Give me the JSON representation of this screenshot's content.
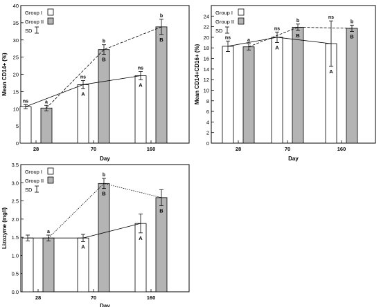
{
  "chart_data": [
    {
      "type": "bar",
      "panel": "top-left",
      "ylabel": "Mean CD14+ (%)",
      "xlabel": "Day",
      "categories": [
        "28",
        "70",
        "160"
      ],
      "ylim": [
        0,
        40
      ],
      "yticks": [
        0,
        5,
        10,
        15,
        20,
        25,
        30,
        35,
        40
      ],
      "grid": false,
      "legend_position": "top-left",
      "legend": {
        "series": [
          "Group I",
          "Group II"
        ],
        "sd_label": "SD"
      },
      "series": [
        {
          "name": "Group I",
          "values": [
            10.6,
            17.0,
            19.6
          ],
          "sd": [
            0.6,
            1.2,
            1.2
          ],
          "colors": {
            "fill": "#ffffff",
            "stroke": "#000000"
          },
          "labels_above": [
            "ns",
            "ns",
            "ns"
          ],
          "labels_inside": [
            "",
            "A",
            "A"
          ],
          "trend": "solid"
        },
        {
          "name": "Group II",
          "values": [
            10.2,
            27.2,
            33.8
          ],
          "sd": [
            0.8,
            1.4,
            2.2
          ],
          "colors": {
            "fill": "#b4b4b4",
            "stroke": "#000000"
          },
          "labels_above": [
            "a",
            "b",
            "b"
          ],
          "labels_inside": [
            "",
            "B",
            "B"
          ],
          "trend": "dashed"
        }
      ]
    },
    {
      "type": "bar",
      "panel": "top-right",
      "ylabel": "Mean CD14+CD16+ (%)",
      "xlabel": "Day",
      "categories": [
        "28",
        "70",
        "160"
      ],
      "ylim": [
        0,
        26
      ],
      "yticks": [
        0,
        2,
        4,
        6,
        8,
        10,
        12,
        14,
        16,
        18,
        20,
        22,
        24
      ],
      "grid": false,
      "legend_position": "top-left",
      "legend": {
        "series": [
          "Group I",
          "Group II"
        ],
        "sd_label": "SD"
      },
      "series": [
        {
          "name": "Group I",
          "values": [
            18.3,
            20.0,
            18.8
          ],
          "sd": [
            1.0,
            1.0,
            4.3
          ],
          "colors": {
            "fill": "#ffffff",
            "stroke": "#000000"
          },
          "labels_above": [
            "ns",
            "ns",
            "ns"
          ],
          "labels_inside": [
            "",
            "A",
            "A"
          ],
          "trend": "solid"
        },
        {
          "name": "Group II",
          "values": [
            18.2,
            21.9,
            21.7
          ],
          "sd": [
            0.6,
            0.6,
            0.6
          ],
          "colors": {
            "fill": "#b4b4b4",
            "stroke": "#000000"
          },
          "labels_above": [
            "a",
            "b",
            "b"
          ],
          "labels_inside": [
            "",
            "B",
            "B"
          ],
          "trend": "dashed"
        }
      ]
    },
    {
      "type": "bar",
      "panel": "bottom-left",
      "ylabel": "Lizozyme (mg/l)",
      "xlabel": "Day",
      "categories": [
        "28",
        "70",
        "160"
      ],
      "ylim": [
        0,
        3.5
      ],
      "yticks": [
        0.0,
        0.5,
        1.0,
        1.5,
        2.0,
        2.5,
        3.0,
        3.5
      ],
      "ytick_decimals": 1,
      "grid": false,
      "legend_position": "top-left",
      "legend": {
        "series": [
          "Group I",
          "Group II"
        ],
        "sd_label": "SD"
      },
      "series": [
        {
          "name": "Group I",
          "values": [
            1.48,
            1.48,
            1.88
          ],
          "sd": [
            0.08,
            0.1,
            0.26
          ],
          "colors": {
            "fill": "#ffffff",
            "stroke": "#000000"
          },
          "labels_above": [
            "",
            "",
            ""
          ],
          "labels_inside": [
            "",
            "A",
            "A"
          ],
          "trend": "solid"
        },
        {
          "name": "Group II",
          "values": [
            1.48,
            2.98,
            2.59
          ],
          "sd": [
            0.08,
            0.14,
            0.22
          ],
          "colors": {
            "fill": "#b4b4b4",
            "stroke": "#000000"
          },
          "labels_above": [
            "a",
            "b",
            ""
          ],
          "labels_inside": [
            "",
            "B",
            "B"
          ],
          "trend": "dotted"
        }
      ]
    }
  ]
}
